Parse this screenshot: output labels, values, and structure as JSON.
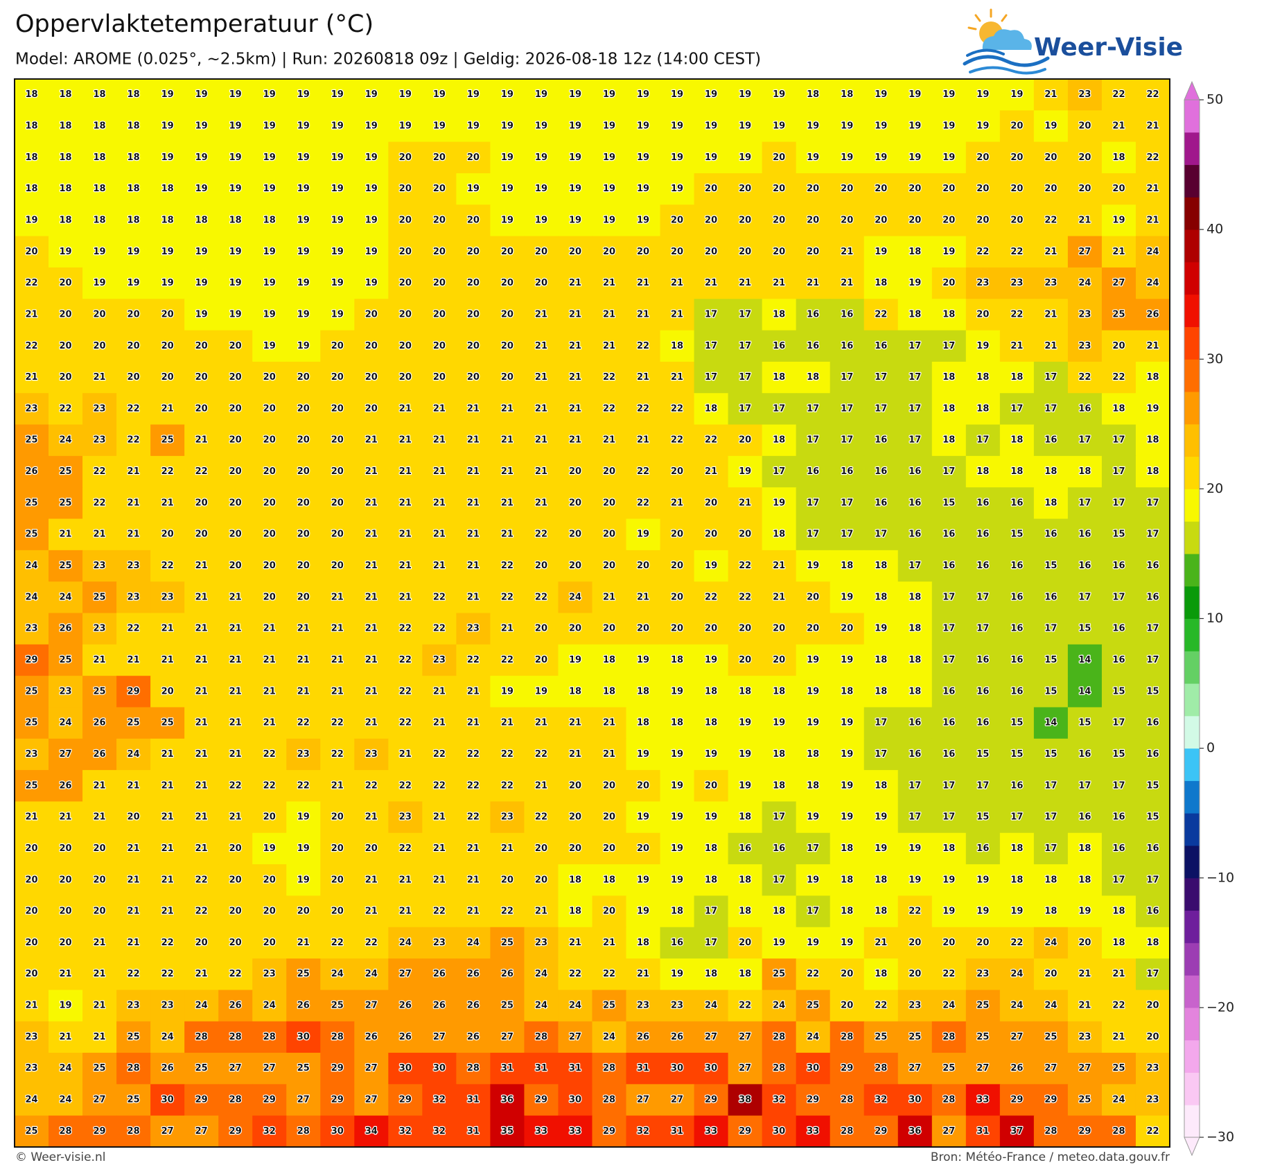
{
  "header": {
    "title": "Oppervlaktetemperatuur (°C)",
    "subtitle": "Model: AROME (0.025°, ~2.5km)  |  Run: 20260818 09z  |  Geldig: 2026-08-18 12z (14:00 CEST)"
  },
  "logo": "Weer-Visie",
  "map": {
    "rows": [
      [
        18,
        18,
        18,
        18,
        19,
        19,
        19,
        19,
        19,
        19,
        19,
        19,
        19,
        19,
        19,
        19,
        19,
        19,
        19,
        19,
        19,
        19,
        19,
        18,
        18,
        19,
        19,
        19,
        19,
        19,
        21,
        23,
        22,
        22
      ],
      [
        18,
        18,
        18,
        18,
        19,
        19,
        19,
        19,
        19,
        19,
        19,
        19,
        19,
        19,
        19,
        19,
        19,
        19,
        19,
        19,
        19,
        19,
        19,
        19,
        19,
        19,
        19,
        19,
        19,
        20,
        19,
        20,
        21,
        21
      ],
      [
        18,
        18,
        18,
        18,
        19,
        19,
        19,
        19,
        19,
        19,
        19,
        20,
        20,
        20,
        19,
        19,
        19,
        19,
        19,
        19,
        19,
        19,
        20,
        19,
        19,
        19,
        19,
        19,
        20,
        20,
        20,
        20,
        18,
        22
      ],
      [
        18,
        18,
        18,
        18,
        18,
        19,
        19,
        19,
        19,
        19,
        19,
        20,
        20,
        19,
        19,
        19,
        19,
        19,
        19,
        19,
        20,
        20,
        20,
        20,
        20,
        20,
        20,
        20,
        20,
        20,
        20,
        20,
        20,
        21
      ],
      [
        19,
        18,
        18,
        18,
        18,
        18,
        18,
        18,
        19,
        19,
        19,
        20,
        20,
        20,
        19,
        19,
        19,
        19,
        19,
        20,
        20,
        20,
        20,
        20,
        20,
        20,
        20,
        20,
        20,
        20,
        22,
        21,
        19,
        21
      ],
      [
        20,
        19,
        19,
        19,
        19,
        19,
        19,
        19,
        19,
        19,
        19,
        20,
        20,
        20,
        20,
        20,
        20,
        20,
        20,
        20,
        20,
        20,
        20,
        20,
        21,
        19,
        18,
        19,
        22,
        22,
        21,
        27,
        21,
        24
      ],
      [
        22,
        20,
        19,
        19,
        19,
        19,
        19,
        19,
        19,
        19,
        19,
        20,
        20,
        20,
        20,
        20,
        21,
        21,
        21,
        21,
        21,
        21,
        21,
        21,
        21,
        18,
        19,
        20,
        23,
        23,
        23,
        24,
        27,
        24
      ],
      [
        21,
        20,
        20,
        20,
        20,
        19,
        19,
        19,
        19,
        19,
        20,
        20,
        20,
        20,
        20,
        21,
        21,
        21,
        21,
        21,
        17,
        17,
        18,
        16,
        16,
        22,
        18,
        18,
        20,
        22,
        21,
        23,
        25,
        26
      ],
      [
        22,
        20,
        20,
        20,
        20,
        20,
        20,
        19,
        19,
        20,
        20,
        20,
        20,
        20,
        20,
        21,
        21,
        21,
        22,
        18,
        17,
        17,
        16,
        16,
        16,
        16,
        17,
        17,
        19,
        21,
        21,
        23,
        20,
        21
      ],
      [
        21,
        20,
        21,
        20,
        20,
        20,
        20,
        20,
        20,
        20,
        20,
        20,
        20,
        20,
        20,
        21,
        21,
        22,
        21,
        21,
        17,
        17,
        18,
        18,
        17,
        17,
        17,
        18,
        18,
        18,
        17,
        22,
        22,
        18
      ],
      [
        23,
        22,
        23,
        22,
        21,
        20,
        20,
        20,
        20,
        20,
        20,
        21,
        21,
        21,
        21,
        21,
        21,
        22,
        22,
        22,
        18,
        17,
        17,
        17,
        17,
        17,
        17,
        18,
        18,
        17,
        17,
        16,
        18,
        19
      ],
      [
        25,
        24,
        23,
        22,
        25,
        21,
        20,
        20,
        20,
        20,
        21,
        21,
        21,
        21,
        21,
        21,
        21,
        21,
        21,
        22,
        22,
        20,
        18,
        17,
        17,
        16,
        17,
        18,
        17,
        18,
        16,
        17,
        17,
        18
      ],
      [
        26,
        25,
        22,
        21,
        22,
        22,
        20,
        20,
        20,
        20,
        21,
        21,
        21,
        21,
        21,
        21,
        20,
        20,
        22,
        20,
        21,
        19,
        17,
        16,
        16,
        16,
        16,
        17,
        18,
        18,
        18,
        18,
        17,
        18
      ],
      [
        25,
        25,
        22,
        21,
        21,
        20,
        20,
        20,
        20,
        20,
        21,
        21,
        21,
        21,
        21,
        21,
        20,
        20,
        22,
        21,
        20,
        21,
        19,
        17,
        17,
        16,
        16,
        15,
        16,
        16,
        18,
        17,
        17,
        17
      ],
      [
        25,
        21,
        21,
        21,
        20,
        20,
        20,
        20,
        20,
        20,
        21,
        21,
        21,
        21,
        21,
        22,
        20,
        20,
        19,
        20,
        20,
        20,
        18,
        17,
        17,
        17,
        16,
        16,
        16,
        15,
        16,
        16,
        15,
        17
      ],
      [
        24,
        25,
        23,
        23,
        22,
        21,
        20,
        20,
        20,
        20,
        21,
        21,
        21,
        21,
        22,
        20,
        20,
        20,
        20,
        20,
        19,
        22,
        21,
        19,
        18,
        18,
        17,
        16,
        16,
        16,
        15,
        16,
        16,
        16
      ],
      [
        24,
        24,
        25,
        23,
        23,
        21,
        21,
        20,
        20,
        21,
        21,
        21,
        22,
        21,
        22,
        22,
        24,
        21,
        21,
        20,
        22,
        22,
        21,
        20,
        19,
        18,
        18,
        17,
        17,
        16,
        16,
        17,
        17,
        16
      ],
      [
        23,
        26,
        23,
        22,
        21,
        21,
        21,
        21,
        21,
        21,
        21,
        22,
        22,
        23,
        21,
        20,
        20,
        20,
        20,
        20,
        20,
        20,
        20,
        20,
        20,
        19,
        18,
        17,
        17,
        16,
        17,
        15,
        16,
        17
      ],
      [
        29,
        25,
        21,
        21,
        21,
        21,
        21,
        21,
        21,
        21,
        21,
        22,
        23,
        22,
        22,
        20,
        19,
        18,
        19,
        18,
        19,
        20,
        20,
        19,
        19,
        18,
        18,
        17,
        16,
        16,
        15,
        14,
        16,
        17
      ],
      [
        25,
        23,
        25,
        29,
        20,
        21,
        21,
        21,
        21,
        21,
        21,
        22,
        21,
        21,
        19,
        19,
        18,
        18,
        18,
        19,
        18,
        18,
        18,
        19,
        18,
        18,
        18,
        16,
        16,
        16,
        15,
        14,
        15,
        15
      ],
      [
        25,
        24,
        26,
        25,
        25,
        21,
        21,
        21,
        22,
        22,
        21,
        22,
        21,
        21,
        21,
        21,
        21,
        21,
        18,
        18,
        18,
        19,
        19,
        19,
        19,
        17,
        16,
        16,
        16,
        15,
        14,
        15,
        17,
        16
      ],
      [
        23,
        27,
        26,
        24,
        21,
        21,
        21,
        22,
        23,
        22,
        23,
        21,
        22,
        22,
        22,
        22,
        21,
        21,
        19,
        19,
        19,
        19,
        18,
        18,
        19,
        17,
        16,
        16,
        15,
        15,
        15,
        16,
        15,
        16
      ],
      [
        25,
        26,
        21,
        21,
        21,
        21,
        22,
        22,
        22,
        21,
        22,
        22,
        22,
        22,
        22,
        21,
        20,
        20,
        20,
        19,
        20,
        19,
        18,
        18,
        19,
        18,
        17,
        17,
        17,
        16,
        17,
        17,
        17,
        15
      ],
      [
        21,
        21,
        21,
        20,
        21,
        21,
        21,
        20,
        19,
        20,
        21,
        23,
        21,
        22,
        23,
        22,
        20,
        20,
        19,
        19,
        19,
        18,
        17,
        19,
        19,
        19,
        17,
        17,
        15,
        17,
        17,
        16,
        16,
        15
      ],
      [
        20,
        20,
        20,
        21,
        21,
        21,
        20,
        19,
        19,
        20,
        20,
        22,
        21,
        21,
        21,
        20,
        20,
        20,
        20,
        19,
        18,
        16,
        16,
        17,
        18,
        19,
        19,
        18,
        16,
        18,
        17,
        18,
        16,
        16
      ],
      [
        20,
        20,
        20,
        21,
        21,
        22,
        20,
        20,
        19,
        20,
        21,
        21,
        21,
        21,
        20,
        20,
        18,
        18,
        19,
        19,
        18,
        18,
        17,
        19,
        18,
        18,
        19,
        19,
        19,
        18,
        18,
        18,
        17,
        17
      ],
      [
        20,
        20,
        20,
        21,
        21,
        22,
        20,
        20,
        20,
        20,
        21,
        21,
        22,
        21,
        22,
        21,
        18,
        20,
        19,
        18,
        17,
        18,
        18,
        17,
        18,
        18,
        22,
        19,
        19,
        19,
        18,
        19,
        18,
        16
      ],
      [
        20,
        20,
        21,
        21,
        22,
        20,
        20,
        20,
        21,
        22,
        22,
        24,
        23,
        24,
        25,
        23,
        21,
        21,
        18,
        16,
        17,
        20,
        19,
        19,
        19,
        21,
        20,
        20,
        20,
        22,
        24,
        20,
        18,
        18
      ],
      [
        20,
        21,
        21,
        22,
        22,
        21,
        22,
        23,
        25,
        24,
        24,
        27,
        26,
        26,
        26,
        24,
        22,
        22,
        21,
        19,
        18,
        18,
        25,
        22,
        20,
        18,
        20,
        22,
        23,
        24,
        20,
        21,
        21,
        17
      ],
      [
        21,
        19,
        21,
        23,
        23,
        24,
        26,
        24,
        26,
        25,
        27,
        26,
        26,
        26,
        25,
        24,
        24,
        25,
        23,
        23,
        24,
        22,
        24,
        25,
        20,
        22,
        23,
        24,
        25,
        24,
        24,
        21,
        22,
        20
      ],
      [
        23,
        21,
        21,
        25,
        24,
        28,
        28,
        28,
        30,
        28,
        26,
        26,
        27,
        26,
        27,
        28,
        27,
        24,
        26,
        26,
        27,
        27,
        28,
        24,
        28,
        25,
        25,
        28,
        25,
        27,
        25,
        23,
        21,
        20
      ],
      [
        23,
        24,
        25,
        28,
        26,
        25,
        27,
        27,
        25,
        29,
        27,
        30,
        30,
        28,
        31,
        31,
        31,
        28,
        31,
        30,
        30,
        27,
        28,
        30,
        29,
        28,
        27,
        25,
        27,
        26,
        27,
        27,
        25,
        23
      ],
      [
        24,
        24,
        27,
        25,
        30,
        29,
        28,
        29,
        27,
        29,
        27,
        29,
        32,
        31,
        36,
        29,
        30,
        28,
        27,
        27,
        29,
        38,
        32,
        29,
        28,
        32,
        30,
        28,
        33,
        29,
        29,
        25,
        24,
        23
      ],
      [
        25,
        28,
        29,
        28,
        27,
        27,
        29,
        32,
        28,
        30,
        34,
        32,
        32,
        31,
        35,
        33,
        33,
        29,
        32,
        31,
        33,
        29,
        30,
        33,
        28,
        29,
        36,
        27,
        31,
        37,
        28,
        29,
        28,
        22
      ]
    ]
  },
  "colorbar": {
    "lim": [
      -30,
      50
    ],
    "ticks": [
      50,
      40,
      30,
      20,
      10,
      0,
      {
        "value": -10,
        "label": "−10"
      },
      {
        "value": -20,
        "label": "−20"
      },
      {
        "value": -30,
        "label": "−30"
      }
    ],
    "colors": [
      "#fdeafb",
      "#fac8f3",
      "#f3a8ec",
      "#e384dd",
      "#c863cc",
      "#9c3db3",
      "#6e1f9c",
      "#3a0c6e",
      "#0c1264",
      "#0a3a9e",
      "#0f78cc",
      "#3cc4f6",
      "#d2fae6",
      "#a0eca8",
      "#64d064",
      "#28b828",
      "#0a9a0a",
      "#4ab41a",
      "#c8da10",
      "#f8f800",
      "#ffd800",
      "#ffbf00",
      "#ff9a00",
      "#ff6e00",
      "#ff4400",
      "#f01000",
      "#d00000",
      "#ae0000",
      "#860000",
      "#580030",
      "#a0188c",
      "#e070dc"
    ]
  },
  "footer": {
    "left": "© Weer-visie.nl",
    "right": "Bron: Météo-France / meteo.data.gouv.fr"
  }
}
